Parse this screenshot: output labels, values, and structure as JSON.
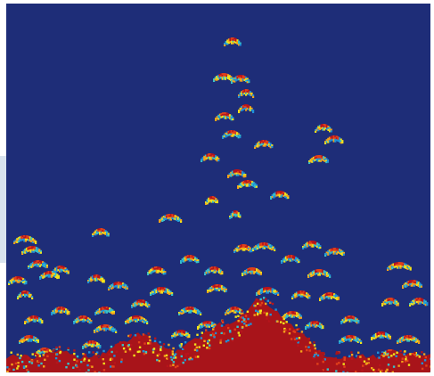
{
  "image": {
    "kind": "echogram",
    "background_color": "#1e2d78",
    "palette": [
      "#1e90d8",
      "#37c0c8",
      "#f2e21a",
      "#f4a21a",
      "#e0401a",
      "#b8141c",
      "#a8141a"
    ],
    "seabed_color": "#a8141a",
    "frame_color": "#ffffff"
  }
}
